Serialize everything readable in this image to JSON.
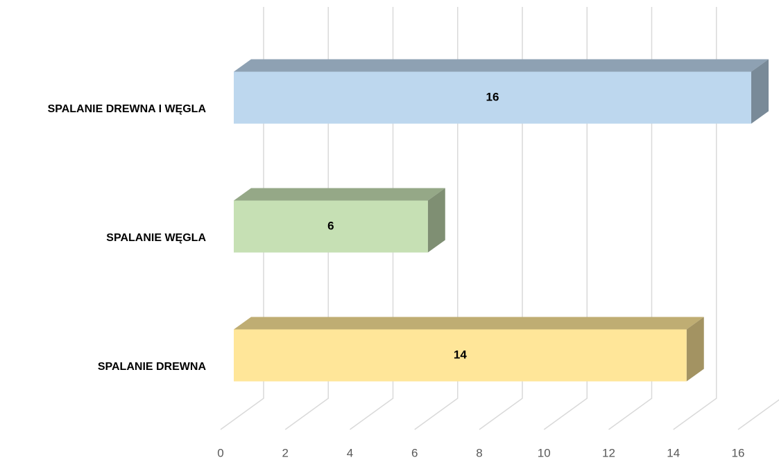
{
  "chart_data": {
    "type": "bar3d_horizontal",
    "categories": [
      "SPALANIE DREWNA I WĘGLA",
      "SPALANIE WĘGLA",
      "SPALANIE DREWNA"
    ],
    "values": [
      16,
      6,
      14
    ],
    "colors": [
      "#bdd7ee",
      "#c6e0b4",
      "#ffe699"
    ],
    "xlim": [
      0,
      16
    ],
    "xticks": [
      0,
      2,
      4,
      6,
      8,
      10,
      12,
      14,
      16
    ],
    "grid": true
  }
}
